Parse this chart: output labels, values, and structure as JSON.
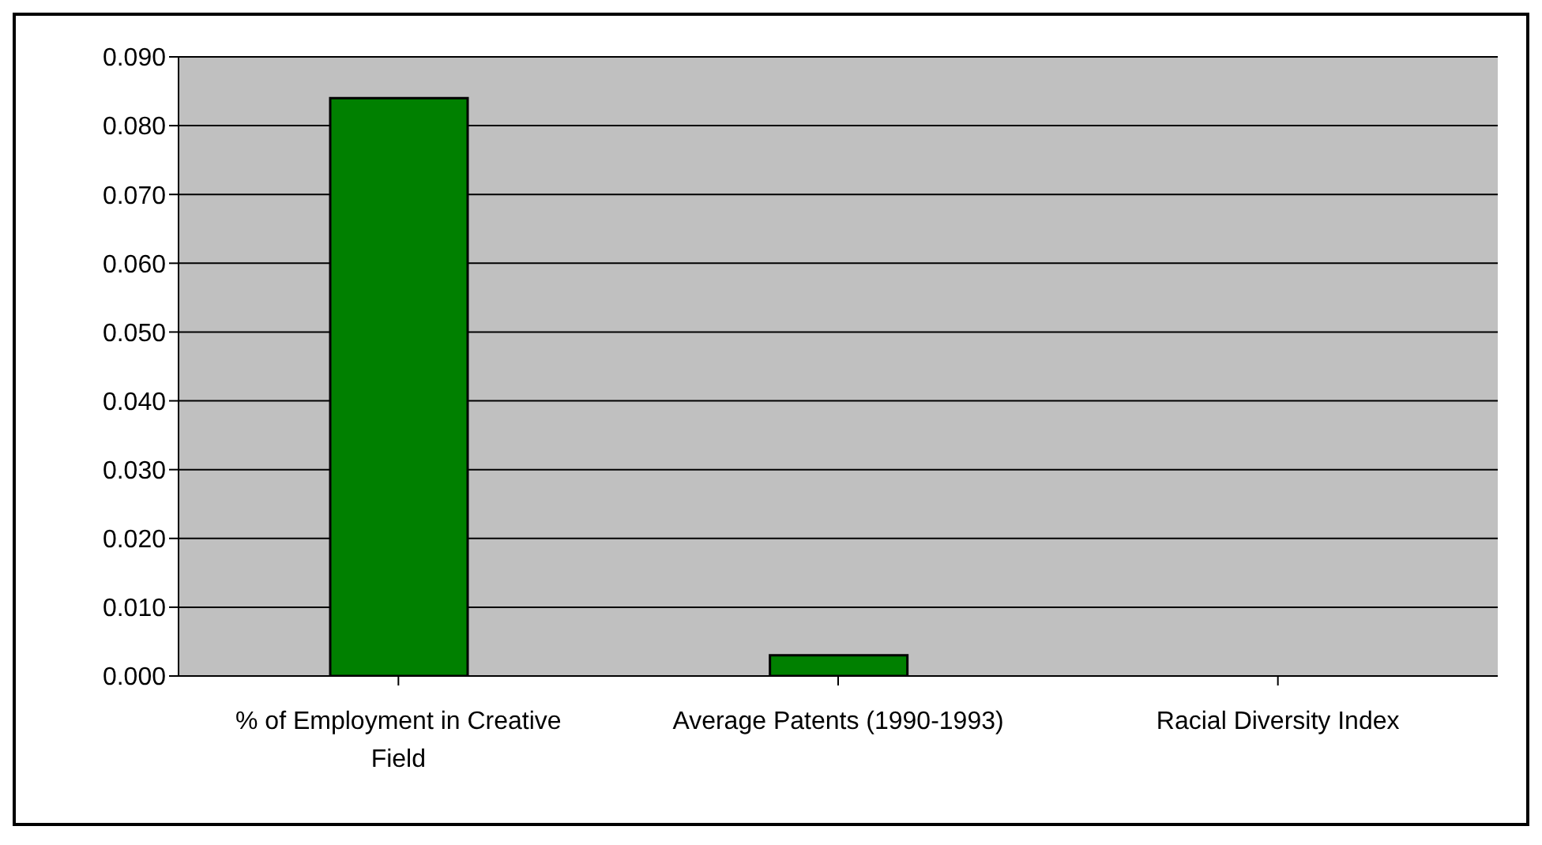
{
  "chart_data": {
    "type": "bar",
    "categories": [
      "% of Employment in Creative Field",
      "Average Patents (1990-1993)",
      "Racial Diversity Index"
    ],
    "values": [
      0.084,
      0.003,
      0
    ],
    "color": "#008000",
    "ylim": [
      0,
      0.09
    ],
    "yticks": [
      {
        "value": 0,
        "label": "0.000"
      },
      {
        "value": 0.01,
        "label": "0.010"
      },
      {
        "value": 0.02,
        "label": "0.020"
      },
      {
        "value": 0.03,
        "label": "0.030"
      },
      {
        "value": 0.04,
        "label": "0.040"
      },
      {
        "value": 0.05,
        "label": "0.050"
      },
      {
        "value": 0.06,
        "label": "0.060"
      },
      {
        "value": 0.07,
        "label": "0.070"
      },
      {
        "value": 0.08,
        "label": "0.080"
      },
      {
        "value": 0.09,
        "label": "0.090"
      }
    ],
    "grid": "y",
    "legend": false
  }
}
